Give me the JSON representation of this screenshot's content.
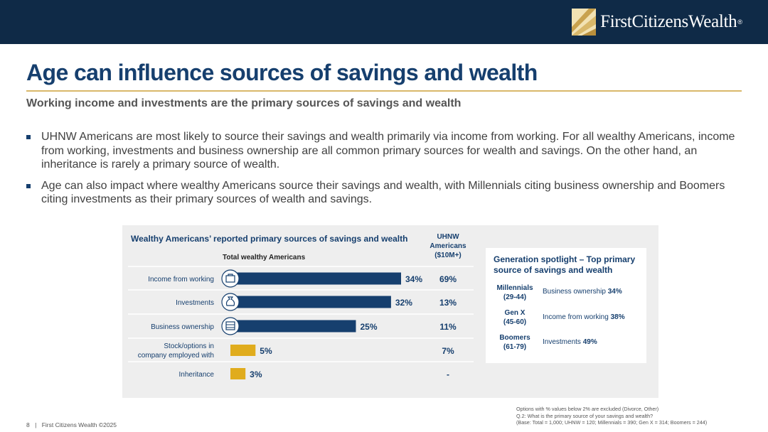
{
  "brand": {
    "name": "FirstCitizensWealth",
    "registered": "®"
  },
  "title": "Age can influence sources of savings and wealth",
  "subtitle": "Working income and investments are the primary sources of savings and wealth",
  "bullets": [
    "UHNW Americans are most likely to source their savings and wealth primarily via income from working. For all wealthy Americans, income from working, investments and business ownership are all common primary sources for wealth and savings. On the other hand, an inheritance is rarely a primary source of wealth.",
    "Age can also impact where wealthy Americans source their savings and wealth, with Millennials citing business ownership and Boomers citing investments as their primary sources of wealth and savings."
  ],
  "chart_data": {
    "type": "bar",
    "orientation": "horizontal",
    "title": "Wealthy Americans’ reported primary sources of savings and wealth",
    "series_label": "Total wealthy Americans",
    "categories": [
      "Income from working",
      "Investments",
      "Business ownership",
      "Stock/options in company employed with",
      "Inheritance"
    ],
    "category_lines": [
      [
        "Income from working"
      ],
      [
        "Investments"
      ],
      [
        "Business ownership"
      ],
      [
        "Stock/options in",
        "company employed with"
      ],
      [
        "Inheritance"
      ]
    ],
    "icons": [
      "briefcase-icon",
      "money-bag-icon",
      "business-building-icon",
      "",
      ""
    ],
    "values": [
      34,
      32,
      25,
      5,
      3
    ],
    "value_labels": [
      "34%",
      "32%",
      "25%",
      "5%",
      "3%"
    ],
    "bar_colors": [
      "#163f6e",
      "#163f6e",
      "#163f6e",
      "#e0ac1d",
      "#e0ac1d"
    ],
    "uhnw_header": [
      "UHNW",
      "Americans",
      "($10M+)"
    ],
    "uhnw_values": [
      "69%",
      "13%",
      "11%",
      "7%",
      "-"
    ],
    "xlim": [
      0,
      34
    ]
  },
  "spotlight": {
    "title": "Generation spotlight – Top primary source of savings and wealth",
    "rows": [
      {
        "gen": "Millennials",
        "ages": "(29-44)",
        "source": "Business ownership",
        "pct": "34%"
      },
      {
        "gen": "Gen X",
        "ages": "(45-60)",
        "source": "Income from working",
        "pct": "38%"
      },
      {
        "gen": "Boomers",
        "ages": "(61-79)",
        "source": "Investments",
        "pct": "49%"
      }
    ]
  },
  "footer": {
    "page": "8",
    "separator": "|",
    "text": "First Citizens Wealth ©2025"
  },
  "footnotes": [
    "Options with % values below 2% are excluded (Divorce, Other)",
    "Q.2:  What is the primary source of your savings and wealth?",
    "(Base: Total = 1,000; UHNW = 120; Millennials = 390; Gen X = 314; Boomers = 244)"
  ],
  "colors": {
    "navy": "#0f2a47",
    "title_blue": "#163f6e",
    "gold": "#d9b86a",
    "bar_navy": "#163f6e",
    "bar_gold": "#e0ac1d"
  }
}
